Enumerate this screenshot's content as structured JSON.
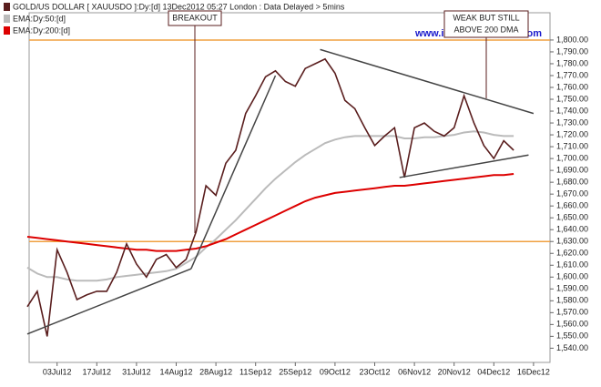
{
  "chart_data": {
    "type": "line",
    "categories": [
      null,
      null,
      null,
      "03Jul12",
      null,
      null,
      null,
      "17Jul12",
      null,
      null,
      null,
      "31Jul12",
      null,
      null,
      null,
      "14Aug12",
      null,
      null,
      null,
      "28Aug12",
      null,
      null,
      null,
      "11Sep12",
      null,
      null,
      null,
      "25Sep12",
      null,
      null,
      null,
      "09Oct12",
      null,
      null,
      null,
      "23Oct12",
      null,
      null,
      null,
      "06Nov12",
      null,
      null,
      null,
      "20Nov12",
      null,
      null,
      null,
      "04Dec12",
      null,
      null,
      null,
      "16Dec12"
    ],
    "series": [
      {
        "name": "GOLD/US DOLLAR [ XAUUSDO ]:Dy:[d]  13Dec2012 05:27 London : Data Delayed > 5mins",
        "color": "#5a1e1e",
        "values": [
          1575,
          1588,
          1550,
          1623,
          1604,
          1581,
          1585,
          1588,
          1588,
          1604,
          1628,
          1611,
          1600,
          1615,
          1619,
          1608,
          1615,
          1638,
          1677,
          1669,
          1696,
          1707,
          1738,
          1753,
          1769,
          1774,
          1765,
          1761,
          1776,
          1780,
          1784,
          1772,
          1749,
          1742,
          1726,
          1711,
          1719,
          1726,
          1684,
          1726,
          1730,
          1723,
          1719,
          1726,
          1753,
          1730,
          1711,
          1700,
          1715,
          1707,
          null,
          null
        ]
      },
      {
        "name": "EMA:Dy:50:[d]",
        "color": "#bbbbbb",
        "values": [
          1608,
          1603,
          1600,
          1600,
          1598,
          1597,
          1597,
          1597,
          1598,
          1600,
          1601,
          1602,
          1603,
          1604,
          1605,
          1607,
          1612,
          1617,
          1625,
          1632,
          1640,
          1648,
          1657,
          1666,
          1675,
          1683,
          1690,
          1697,
          1703,
          1708,
          1713,
          1716,
          1718,
          1719,
          1719,
          1719,
          1719,
          1719,
          1717,
          1717,
          1718,
          1718,
          1719,
          1720,
          1722,
          1723,
          1722,
          1720,
          1719,
          1719,
          null,
          null
        ]
      },
      {
        "name": "EMA:Dy:200:[d]",
        "color": "#dd0000",
        "values": [
          1634,
          1633,
          1632,
          1631,
          1630,
          1629,
          1628,
          1627,
          1626,
          1625,
          1624,
          1623,
          1623,
          1622,
          1622,
          1622,
          1623,
          1624,
          1626,
          1629,
          1632,
          1636,
          1640,
          1644,
          1648,
          1652,
          1656,
          1660,
          1664,
          1667,
          1669,
          1671,
          1672,
          1673,
          1674,
          1675,
          1676,
          1677,
          1677,
          1678,
          1679,
          1680,
          1681,
          1682,
          1683,
          1684,
          1685,
          1686,
          1686,
          1687,
          null,
          null
        ]
      }
    ],
    "ylim": [
      1528,
      1823
    ],
    "yticks": [
      {
        "value": 1540,
        "label": "1,540.00"
      },
      {
        "value": 1550,
        "label": "1,550.00"
      },
      {
        "value": 1560,
        "label": "1,560.00"
      },
      {
        "value": 1570,
        "label": "1,570.00"
      },
      {
        "value": 1580,
        "label": "1,580.00"
      },
      {
        "value": 1590,
        "label": "1,590.00"
      },
      {
        "value": 1600,
        "label": "1,600.00"
      },
      {
        "value": 1610,
        "label": "1,610.00"
      },
      {
        "value": 1620,
        "label": "1,620.00"
      },
      {
        "value": 1630,
        "label": "1,630.00"
      },
      {
        "value": 1640,
        "label": "1,640.00"
      },
      {
        "value": 1650,
        "label": "1,650.00"
      },
      {
        "value": 1660,
        "label": "1,660.00"
      },
      {
        "value": 1670,
        "label": "1,670.00"
      },
      {
        "value": 1680,
        "label": "1,680.00"
      },
      {
        "value": 1690,
        "label": "1,690.00"
      },
      {
        "value": 1700,
        "label": "1,700.00"
      },
      {
        "value": 1710,
        "label": "1,710.00"
      },
      {
        "value": 1720,
        "label": "1,720.00"
      },
      {
        "value": 1730,
        "label": "1,730.00"
      },
      {
        "value": 1740,
        "label": "1,740.00"
      },
      {
        "value": 1750,
        "label": "1,750.00"
      },
      {
        "value": 1760,
        "label": "1,760.00"
      },
      {
        "value": 1770,
        "label": "1,770.00"
      },
      {
        "value": 1780,
        "label": "1,780.00"
      },
      {
        "value": 1790,
        "label": "1,790.00"
      },
      {
        "value": 1800,
        "label": "1,800.00"
      }
    ],
    "hlines": {
      "color": "#f0a040",
      "values": [
        1800,
        1630
      ]
    },
    "trendlines": {
      "color": "#444444",
      "lines": [
        {
          "x": [
            0,
            16.5
          ],
          "values": [
            1552,
            1607
          ]
        },
        {
          "x": [
            16.5,
            25
          ],
          "values": [
            1607,
            1770
          ]
        },
        {
          "x": [
            29.5,
            51
          ],
          "values": [
            1792,
            1738
          ]
        },
        {
          "x": [
            37.5,
            50.5
          ],
          "values": [
            1684,
            1703
          ]
        }
      ]
    },
    "annotations": [
      "BREAKOUT",
      "WEAK BUT STILL",
      "ABOVE 200 DMA"
    ],
    "watermark": "www.incrediblecharts.com",
    "grid": false
  }
}
